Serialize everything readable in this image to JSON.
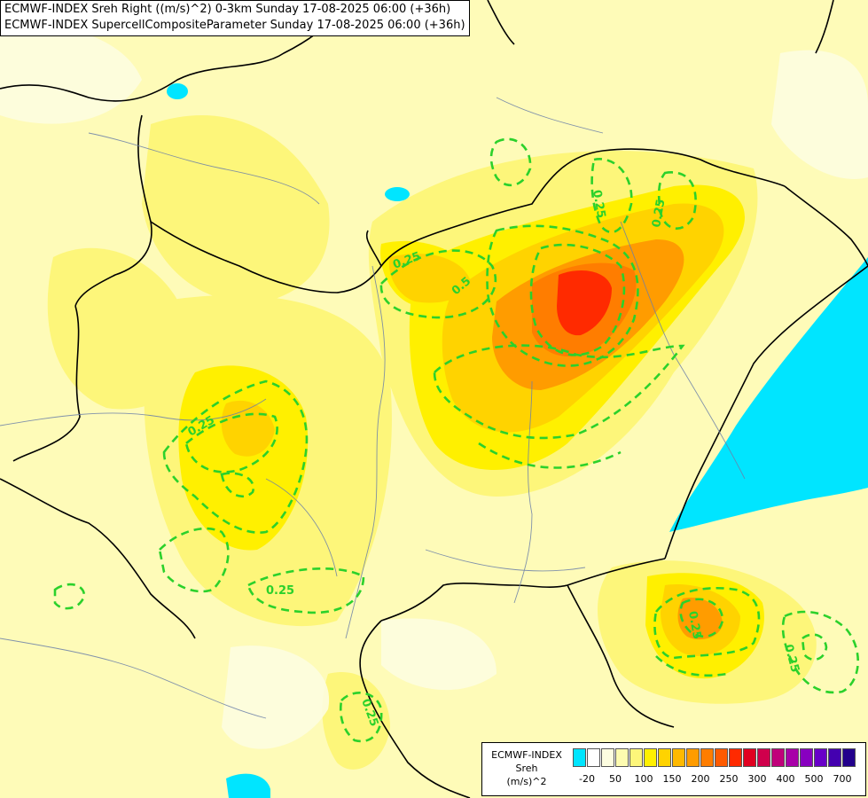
{
  "header": {
    "line1": "ECMWF-INDEX Sreh Right ((m/s)^2) 0-3km Sunday 17-08-2025 06:00 (+36h)",
    "line2": "ECMWF-INDEX SupercellCompositeParameter Sunday 17-08-2025 06:00 (+36h)"
  },
  "contour_labels": [
    "0.25",
    "0.5"
  ],
  "legend": {
    "source": "ECMWF-INDEX",
    "variable": "Sreh",
    "unit": "(m/s)^2",
    "colors": [
      "#00e5ff",
      "#ffffff",
      "#fdfde0",
      "#fdfbb0",
      "#fdf67a",
      "#fff000",
      "#ffd300",
      "#ffb900",
      "#ff9c00",
      "#ff7d00",
      "#ff5a00",
      "#ff2a00",
      "#e00020",
      "#d0004c",
      "#c0007a",
      "#a800a8",
      "#8800c0",
      "#6800c8",
      "#4400b0",
      "#22008c"
    ],
    "ticks": [
      "-20",
      "50",
      "100",
      "150",
      "200",
      "250",
      "300",
      "400",
      "500",
      "700"
    ]
  }
}
